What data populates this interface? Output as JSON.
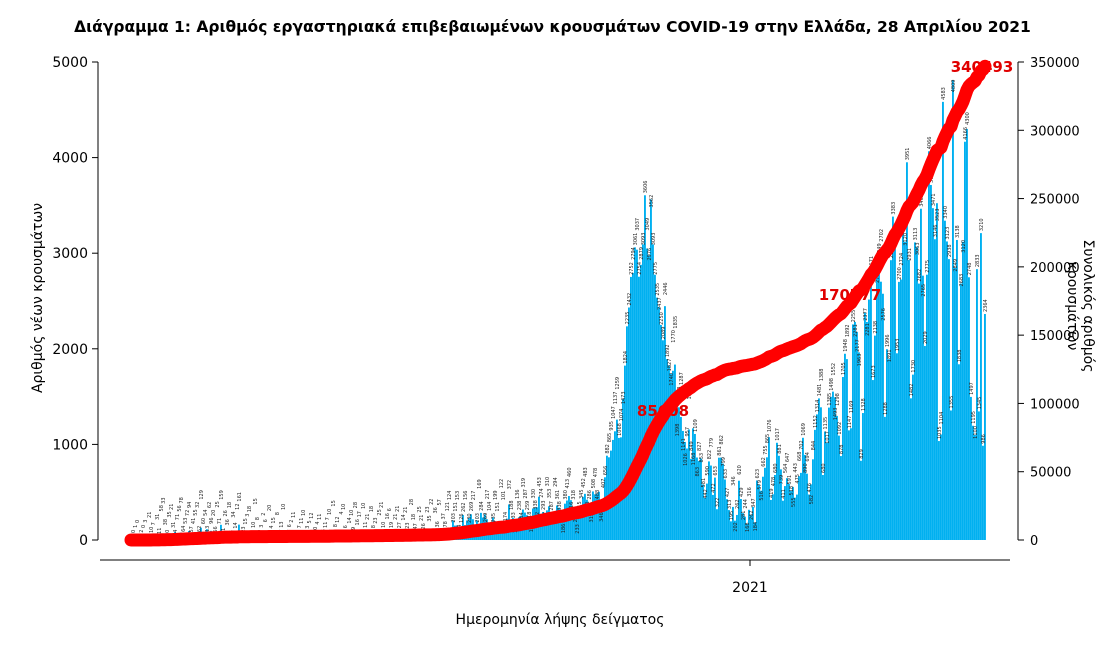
{
  "chart_data": {
    "type": "bar",
    "title": "Διάγραμμα 1: Αριθμός εργαστηριακά επιβεβαιωμένων κρουσμάτων COVID-19 στην Ελλάδα, 28 Απριλίου 2021",
    "xlabel": "Ημερομηνία λήψης δείγματος",
    "ylabel": "Αριθμός νέων κρουσμάτων",
    "y2label": "Συνολικός αριθμός κρουσμάτων",
    "x_tick_labels": [
      "2021"
    ],
    "ylim": [
      0,
      5000
    ],
    "y_ticks": [
      0,
      1000,
      2000,
      3000,
      4000,
      5000
    ],
    "y2lim": [
      0,
      350000
    ],
    "y2_ticks": [
      0,
      50000,
      100000,
      150000,
      200000,
      250000,
      300000,
      350000
    ],
    "grid": false,
    "colors": {
      "bars": "#00b0f0",
      "cumulative": "#ff0000",
      "annotation": "#e00000"
    },
    "series": [
      {
        "type": "bar",
        "axis": "left",
        "values": [
          0,
          0,
          1,
          0,
          3,
          2,
          0,
          3,
          1,
          21,
          10,
          7,
          7,
          31,
          11,
          58,
          33,
          38,
          20,
          35,
          21,
          31,
          84,
          71,
          56,
          78,
          64,
          53,
          72,
          94,
          57,
          41,
          55,
          32,
          62,
          129,
          60,
          54,
          113,
          62,
          96,
          20,
          56,
          25,
          71,
          159,
          41,
          26,
          36,
          18,
          16,
          34,
          14,
          12,
          161,
          9,
          23,
          15,
          3,
          18,
          17,
          10,
          15,
          8,
          19,
          3,
          2,
          6,
          10,
          20,
          4,
          15,
          7,
          8,
          4,
          13,
          10,
          5,
          4,
          6,
          2,
          11,
          1,
          9,
          7,
          11,
          10,
          24,
          3,
          5,
          12,
          2,
          10,
          4,
          11,
          4,
          6,
          11,
          7,
          10,
          97,
          15,
          8,
          12,
          19,
          4,
          10,
          6,
          5,
          14,
          10,
          19,
          28,
          16,
          17,
          18,
          10,
          11,
          21,
          20,
          18,
          8,
          23,
          15,
          25,
          21,
          10,
          14,
          16,
          6,
          19,
          24,
          21,
          21,
          27,
          16,
          14,
          21,
          23,
          18,
          28,
          18,
          47,
          34,
          25,
          21,
          26,
          27,
          23,
          35,
          22,
          28,
          36,
          36,
          57,
          110,
          37,
          78,
          121,
          124,
          110,
          203,
          151,
          153,
          104,
          126,
          262,
          156,
          204,
          230,
          269,
          217,
          144,
          203,
          169,
          284,
          235,
          269,
          217,
          104,
          168,
          235,
          199,
          151,
          200,
          122,
          101,
          174,
          223,
          372,
          188,
          233,
          167,
          136,
          238,
          254,
          319,
          287,
          259,
          218,
          185,
          330,
          338,
          342,
          453,
          274,
          293,
          277,
          310,
          353,
          287,
          249,
          294,
          361,
          338,
          218,
          186,
          380,
          413,
          460,
          416,
          318,
          226,
          233,
          315,
          345,
          452,
          483,
          421,
          286,
          319,
          508,
          478,
          488,
          505,
          346,
          407,
          656,
          882,
          865,
          935,
          1047,
          1137,
          1259,
          1068,
          1074,
          1473,
          1824,
          2235,
          2432,
          2752,
          2794,
          3061,
          3037,
          2754,
          2879,
          3093,
          3606,
          3049,
          2976,
          3562,
          3093,
          2775,
          2535,
          2437,
          2250,
          2089,
          2446,
          1892,
          1827,
          1740,
          1770,
          1835,
          1398,
          1388,
          1287,
          1141,
          1026,
          957,
          1156,
          849,
          1168,
          1109,
          863,
          827,
          853,
          581,
          442,
          590,
          822,
          779,
          472,
          653,
          322,
          861,
          862,
          799,
          633,
          427,
          313,
          195,
          346,
          202,
          262,
          620,
          429,
          281,
          244,
          168,
          316,
          262,
          347,
          184,
          623,
          579,
          516,
          662,
          755,
          865,
          1076,
          419,
          478,
          680,
          1017,
          881,
          739,
          411,
          564,
          647,
          591,
          518,
          555,
          443,
          475,
          668,
          702,
          1069,
          890,
          694,
          476,
          582,
          844,
          1152,
          1314,
          1481,
          1388,
          680,
          1135,
          1017,
          1385,
          1498,
          1552,
          1493,
          1298,
          1092,
          878,
          1705,
          1948,
          1892,
          1147,
          1169,
          2255,
          2281,
          2177,
          1963,
          829,
          1328,
          2377,
          2281,
          2515,
          2671,
          1673,
          2138,
          2762,
          2949,
          2702,
          2576,
          1288,
          1996,
          1891,
          2927,
          3383,
          3051,
          1953,
          2700,
          2724,
          3215,
          3120,
          3951,
          2931,
          1482,
          1730,
          3113,
          3063,
          2682,
          3465,
          2765,
          2029,
          2775,
          4066,
          3713,
          3471,
          3146,
          3523,
          1035,
          1104,
          4583,
          3340,
          3123,
          2938,
          1355,
          4809,
          2849,
          3138,
          1838,
          2683,
          3120,
          4166,
          4300,
          2748,
          1497,
          1195,
          1100,
          2833,
          1345,
          3210,
          986,
          2364
        ]
      },
      {
        "type": "line",
        "axis": "right",
        "cumulative_of": "bar"
      }
    ],
    "annotations": [
      "85608",
      "170777",
      "340493"
    ]
  }
}
